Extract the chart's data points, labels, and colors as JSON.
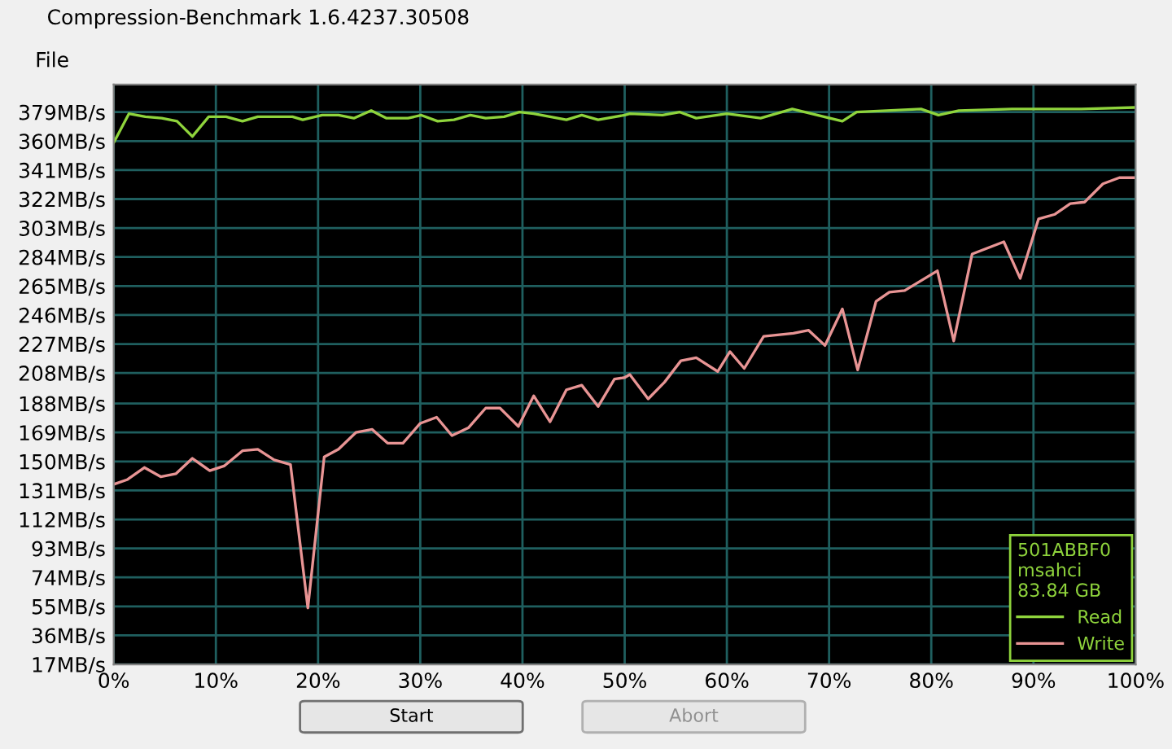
{
  "chart_data": {
    "type": "line",
    "title": "Compression-Benchmark 1.6.4237.30508",
    "annotations": [
      "File",
      "Start",
      "Abort"
    ],
    "legend_title": "501ABBF0\nmsahci\n83.84 GB",
    "series": [
      {
        "name": "Read",
        "color": "#8fd43c",
        "x": [
          0,
          1.5,
          3.1,
          4.7,
          6.2,
          7.7,
          9.3,
          11,
          12.6,
          14.1,
          17.5,
          18.5,
          20.4,
          22,
          23.5,
          25.2,
          26.7,
          28.8,
          30.1,
          31.7,
          33.3,
          34.9,
          36.4,
          38.2,
          39.7,
          41.1,
          42.7,
          44.3,
          45.8,
          47.4,
          50,
          50.5,
          53.7,
          55.4,
          57,
          60,
          63.3,
          66.4,
          69.5,
          71.3,
          72.7,
          79,
          80.7,
          82.7,
          87.9,
          94.7,
          99.8
        ],
        "values": [
          359,
          378,
          376,
          375,
          373,
          363,
          376,
          376,
          373,
          376,
          376,
          374,
          377,
          377,
          375,
          380,
          375,
          375,
          377,
          373,
          374,
          377,
          375,
          376,
          379,
          378,
          376,
          374,
          377,
          374,
          377,
          378,
          377,
          379,
          375,
          378,
          375,
          381,
          376,
          373,
          379,
          381,
          377,
          380,
          381,
          381,
          382
        ]
      },
      {
        "name": "Write",
        "color": "#e89494",
        "x": [
          0,
          1.3,
          3,
          4.6,
          6.1,
          7.7,
          9.4,
          10.8,
          12.6,
          14.1,
          15.7,
          17.3,
          19,
          20.6,
          22,
          23.7,
          25.3,
          26.8,
          28.3,
          30,
          31.6,
          33.1,
          34.7,
          36.4,
          37.8,
          39.6,
          41.1,
          42.7,
          44.3,
          45.8,
          47.4,
          49,
          50,
          50.5,
          52.3,
          53.9,
          55.5,
          57,
          59.1,
          60.3,
          61.7,
          63.6,
          66.5,
          68,
          69.6,
          71.3,
          72.8,
          74.6,
          75.9,
          77.4,
          80.6,
          82.2,
          84,
          87.1,
          88.7,
          90.5,
          92.1,
          93.6,
          95,
          96.8,
          98.4,
          99.8
        ],
        "values": [
          135,
          138,
          146,
          140,
          142,
          152,
          144,
          147,
          157,
          158,
          151,
          148,
          54,
          153,
          158,
          169,
          171,
          162,
          162,
          175,
          179,
          167,
          172,
          185,
          185,
          173,
          193,
          176,
          197,
          200,
          186,
          204,
          205,
          207,
          191,
          202,
          216,
          218,
          209,
          222,
          211,
          232,
          234,
          236,
          226,
          250,
          210,
          255,
          261,
          262,
          275,
          229,
          286,
          294,
          270,
          309,
          312,
          319,
          320,
          332,
          336,
          336
        ]
      }
    ],
    "xlim": [
      0,
      100
    ],
    "xticks": [
      {
        "value": 0,
        "label": "0%"
      },
      {
        "value": 10,
        "label": "10%"
      },
      {
        "value": 20,
        "label": "20%"
      },
      {
        "value": 30,
        "label": "30%"
      },
      {
        "value": 40,
        "label": "40%"
      },
      {
        "value": 50,
        "label": "50%"
      },
      {
        "value": 60,
        "label": "60%"
      },
      {
        "value": 70,
        "label": "70%"
      },
      {
        "value": 80,
        "label": "80%"
      },
      {
        "value": 90,
        "label": "90%"
      },
      {
        "value": 100,
        "label": "100%"
      }
    ],
    "ylim": [
      17,
      397
    ],
    "yticks": [
      {
        "value": 17,
        "label": "17MB/s"
      },
      {
        "value": 36,
        "label": "36MB/s"
      },
      {
        "value": 55,
        "label": "55MB/s"
      },
      {
        "value": 74,
        "label": "74MB/s"
      },
      {
        "value": 93,
        "label": "93MB/s"
      },
      {
        "value": 112,
        "label": "112MB/s"
      },
      {
        "value": 131,
        "label": "131MB/s"
      },
      {
        "value": 150,
        "label": "150MB/s"
      },
      {
        "value": 169,
        "label": "169MB/s"
      },
      {
        "value": 188,
        "label": "188MB/s"
      },
      {
        "value": 208,
        "label": "208MB/s"
      },
      {
        "value": 227,
        "label": "227MB/s"
      },
      {
        "value": 246,
        "label": "246MB/s"
      },
      {
        "value": 265,
        "label": "265MB/s"
      },
      {
        "value": 284,
        "label": "284MB/s"
      },
      {
        "value": 303,
        "label": "303MB/s"
      },
      {
        "value": 322,
        "label": "322MB/s"
      },
      {
        "value": 341,
        "label": "341MB/s"
      },
      {
        "value": 360,
        "label": "360MB/s"
      },
      {
        "value": 379,
        "label": "379MB/s"
      }
    ],
    "grid": true,
    "legend": "bottom right",
    "marker": "none",
    "line_style": "solid"
  }
}
